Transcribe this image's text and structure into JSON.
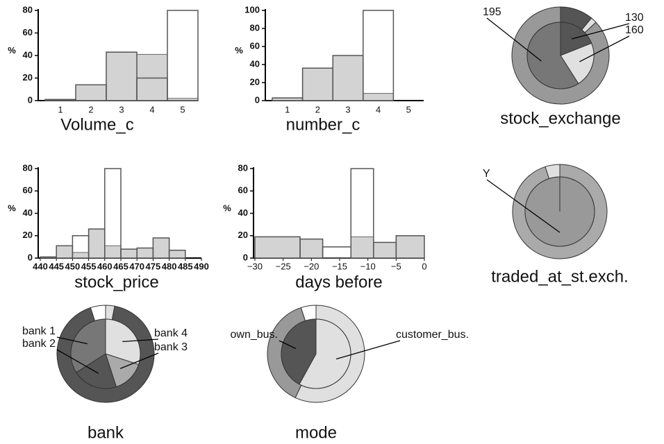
{
  "chart_data": [
    {
      "type": "bar",
      "title": "Volume_c",
      "ylabel": "%",
      "categories": [
        "1",
        "2",
        "3",
        "4",
        "5"
      ],
      "series": [
        {
          "color": "#d3d3d3",
          "values": [
            1,
            14,
            43,
            41,
            2
          ]
        },
        {
          "color": "#555555",
          "values": [
            1,
            14,
            43,
            20,
            80
          ]
        }
      ],
      "ylim": [
        0,
        80
      ],
      "yticks": [
        0,
        20,
        40,
        60,
        80
      ]
    },
    {
      "type": "bar",
      "title": "number_c",
      "ylabel": "%",
      "categories": [
        "1",
        "2",
        "3",
        "4",
        "5"
      ],
      "series": [
        {
          "color": "#d3d3d3",
          "values": [
            3,
            36,
            50,
            8,
            0
          ]
        },
        {
          "color": "#555555",
          "values": [
            3,
            36,
            50,
            100,
            0
          ]
        }
      ],
      "ylim": [
        0,
        100
      ],
      "yticks": [
        0,
        20,
        40,
        60,
        80,
        100
      ]
    },
    {
      "type": "pie",
      "title": "stock_exchange",
      "categories": [
        "130",
        "160",
        "195"
      ],
      "inner_values": [
        19,
        22,
        59
      ],
      "outer_values": [
        11,
        2,
        87
      ],
      "inner_colors": [
        "#555555",
        "#e0e0e0",
        "#777777"
      ],
      "outer_colors": [
        "#555555",
        "#e0e0e0",
        "#999999"
      ]
    },
    {
      "type": "histogram",
      "title": "stock_price",
      "ylabel": "%",
      "bins": [
        440,
        445,
        450,
        455,
        460,
        465,
        470,
        475,
        480,
        485,
        490
      ],
      "series": [
        {
          "color": "#d3d3d3",
          "values": [
            1,
            11,
            5,
            26,
            11,
            8,
            9,
            18,
            7,
            0
          ]
        },
        {
          "color": "#555555",
          "values": [
            1,
            11,
            20,
            26,
            80,
            8,
            9,
            18,
            7,
            0
          ]
        }
      ],
      "xlim": [
        440,
        490
      ],
      "xticks": [
        440,
        445,
        450,
        455,
        460,
        465,
        470,
        475,
        480,
        485,
        490
      ],
      "ylim": [
        0,
        80
      ],
      "yticks": [
        0,
        20,
        40,
        60,
        80
      ]
    },
    {
      "type": "histogram",
      "title": "days before",
      "ylabel": "%",
      "bins": [
        -30,
        -22,
        -18,
        -13,
        -9,
        -5,
        0
      ],
      "series": [
        {
          "color": "#d3d3d3",
          "values": [
            19,
            17,
            0,
            19,
            14,
            20
          ]
        },
        {
          "color": "#555555",
          "values": [
            19,
            17,
            10,
            80,
            14,
            20
          ]
        }
      ],
      "xlim": [
        -30,
        0
      ],
      "xticks": [
        {
          "value": -30,
          "label": "−30"
        },
        {
          "value": -25,
          "label": "−25"
        },
        {
          "value": -20,
          "label": "−20"
        },
        {
          "value": -15,
          "label": "−15"
        },
        {
          "value": -10,
          "label": "−10"
        },
        {
          "value": -5,
          "label": "−5"
        },
        0
      ],
      "ylim": [
        0,
        80
      ],
      "yticks": [
        0,
        20,
        40,
        60,
        80
      ]
    },
    {
      "type": "pie",
      "title": "traded_at_st.exch.",
      "categories": [
        "Y",
        null
      ],
      "inner_values": [
        100,
        0
      ],
      "outer_values": [
        95,
        5
      ],
      "inner_colors": [
        "#999999",
        "#e0e0e0"
      ],
      "outer_colors": [
        "#aaaaaa",
        "#e0e0e0"
      ]
    },
    {
      "type": "pie",
      "title": "bank",
      "categories": [
        "bank 4",
        "bank 3",
        "bank 2",
        "bank 1",
        null
      ],
      "inner_values": [
        30,
        15,
        21,
        34,
        0
      ],
      "outer_values": [
        3,
        0,
        92,
        0,
        5
      ],
      "inner_colors": [
        "#e0e0e0",
        "#aaaaaa",
        "#555555",
        "#777777",
        "#ffffff"
      ],
      "outer_colors": [
        "#e0e0e0",
        "#aaaaaa",
        "#555555",
        "#777777",
        "#ffffff"
      ]
    },
    {
      "type": "pie",
      "title": "mode",
      "categories": [
        "customer_bus.",
        "own_bus.",
        null
      ],
      "inner_values": [
        58,
        42,
        0
      ],
      "outer_values": [
        57,
        38,
        5
      ],
      "inner_colors": [
        "#e0e0e0",
        "#555555",
        "#ffffff"
      ],
      "outer_colors": [
        "#e0e0e0",
        "#999999",
        "#ffffff"
      ]
    }
  ]
}
